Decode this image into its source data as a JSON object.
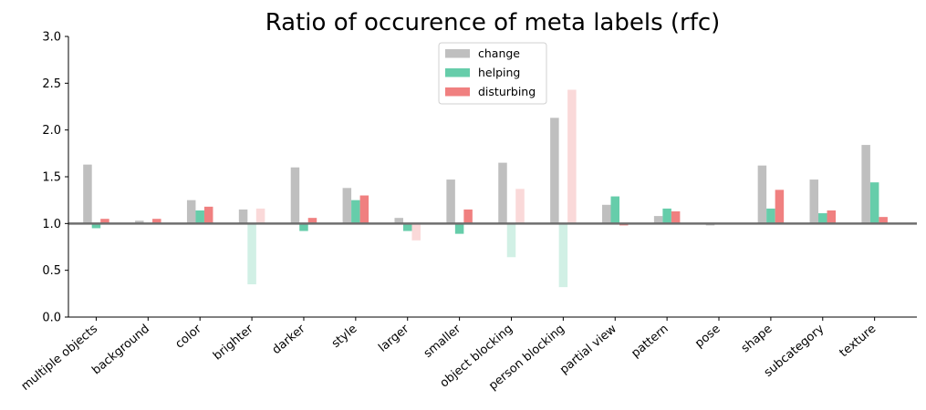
{
  "chart_data": {
    "type": "bar",
    "title": "Ratio of occurence of meta labels (rfc)",
    "xlabel": "",
    "ylabel": "",
    "ylim": [
      0,
      3.0
    ],
    "yticks": [
      "0.0",
      "0.5",
      "1.0",
      "1.5",
      "2.0",
      "2.5",
      "3.0"
    ],
    "baseline": 1.0,
    "grid": false,
    "legend_position": "top-center",
    "categories": [
      "multiple objects",
      "background",
      "color",
      "brighter",
      "darker",
      "style",
      "larger",
      "smaller",
      "object blocking",
      "person blocking",
      "partial view",
      "pattern",
      "pose",
      "shape",
      "subcategory",
      "texture"
    ],
    "series": [
      {
        "name": "change",
        "color": "#bfbfbf",
        "values": [
          1.63,
          1.03,
          1.25,
          1.15,
          1.6,
          1.38,
          1.06,
          1.47,
          1.65,
          2.13,
          1.2,
          1.08,
          0.98,
          1.62,
          1.47,
          1.84
        ],
        "faded": [
          false,
          false,
          false,
          false,
          false,
          false,
          false,
          false,
          false,
          false,
          false,
          false,
          false,
          false,
          false,
          false
        ]
      },
      {
        "name": "helping",
        "color": "#66cdaa",
        "values": [
          0.95,
          1.0,
          1.14,
          0.35,
          0.92,
          1.25,
          0.92,
          0.89,
          0.64,
          0.32,
          1.29,
          1.16,
          1.0,
          1.16,
          1.11,
          1.44
        ],
        "faded": [
          false,
          false,
          false,
          true,
          false,
          false,
          false,
          false,
          true,
          true,
          false,
          false,
          false,
          false,
          false,
          false
        ]
      },
      {
        "name": "disturbing",
        "color": "#f08080",
        "values": [
          1.05,
          1.05,
          1.18,
          1.16,
          1.06,
          1.3,
          0.82,
          1.15,
          1.37,
          2.43,
          0.98,
          1.13,
          1.0,
          1.36,
          1.14,
          1.07
        ],
        "faded": [
          false,
          false,
          false,
          true,
          false,
          false,
          true,
          false,
          true,
          true,
          false,
          false,
          false,
          false,
          false,
          false
        ]
      }
    ]
  }
}
